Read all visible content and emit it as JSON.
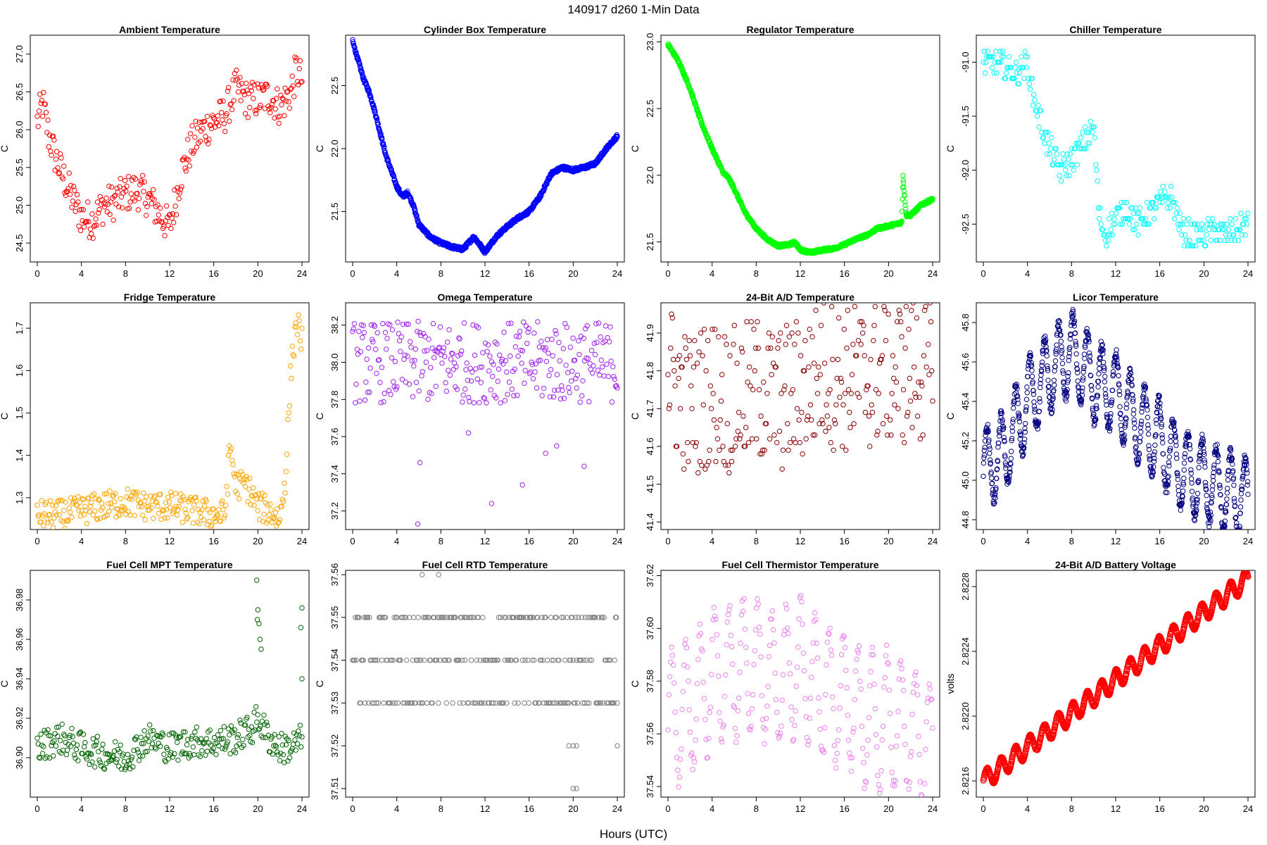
{
  "figure": {
    "title": "140917    d260    1-Min Data",
    "xlabel": "Hours (UTC)"
  },
  "chart_data": [
    {
      "type": "scatter",
      "title": "Ambient Temperature",
      "ylabel": "C",
      "color": "#ff0000",
      "xlim": [
        0,
        24
      ],
      "ylim": [
        24.25,
        27.25
      ],
      "xticks": [
        0,
        4,
        8,
        12,
        16,
        20,
        24
      ],
      "yticks": [
        24.5,
        25.0,
        25.5,
        26.0,
        26.5,
        27.0
      ],
      "ytick_labels": [
        "24.5",
        "25.0",
        "25.5",
        "26.0",
        "26.5",
        "27.0"
      ],
      "density": 1,
      "x": [
        0,
        0.5,
        1,
        1.5,
        2,
        3,
        4,
        5,
        6,
        7,
        8,
        9,
        10,
        11,
        12,
        13,
        14,
        15,
        16,
        17,
        18,
        19,
        20,
        21,
        22,
        23,
        23.5,
        24
      ],
      "y": [
        26.1,
        26.35,
        25.95,
        25.7,
        25.5,
        25.15,
        24.85,
        24.8,
        25.0,
        25.05,
        25.15,
        25.2,
        25.1,
        24.9,
        24.7,
        25.4,
        25.8,
        26.0,
        26.1,
        26.2,
        26.55,
        26.4,
        26.4,
        26.45,
        26.3,
        26.5,
        26.8,
        26.65
      ],
      "spread": 0.25
    },
    {
      "type": "scatter",
      "title": "Cylinder Box Temperature",
      "ylabel": "C",
      "color": "#0000ff",
      "xlim": [
        0,
        24
      ],
      "ylim": [
        21.1,
        22.9
      ],
      "xticks": [
        0,
        4,
        8,
        12,
        16,
        20,
        24
      ],
      "yticks": [
        21.5,
        22.0,
        22.5
      ],
      "ytick_labels": [
        "21.5",
        "22.0",
        "22.5"
      ],
      "density": 3,
      "x": [
        0,
        0.5,
        1,
        1.5,
        2,
        3,
        4,
        4.5,
        5,
        5.5,
        6,
        7,
        8,
        9,
        10,
        10.5,
        11,
        12,
        13,
        14,
        15,
        16,
        17,
        18,
        19,
        20,
        21,
        22,
        23,
        24
      ],
      "y": [
        22.85,
        22.7,
        22.55,
        22.45,
        22.3,
        21.95,
        21.7,
        21.62,
        21.65,
        21.55,
        21.4,
        21.3,
        21.25,
        21.22,
        21.2,
        21.25,
        21.3,
        21.18,
        21.3,
        21.38,
        21.45,
        21.5,
        21.62,
        21.8,
        21.85,
        21.83,
        21.85,
        21.88,
        22.0,
        22.1
      ],
      "spread": 0.015
    },
    {
      "type": "scatter",
      "title": "Regulator Temperature",
      "ylabel": "C",
      "color": "#00ff00",
      "xlim": [
        0,
        24
      ],
      "ylim": [
        21.35,
        23.05
      ],
      "xticks": [
        0,
        4,
        8,
        12,
        16,
        20,
        24
      ],
      "yticks": [
        21.5,
        22.0,
        22.5,
        23.0
      ],
      "ytick_labels": [
        "21.5",
        "22.0",
        "22.5",
        "23.0"
      ],
      "density": 3,
      "x": [
        0,
        1,
        2,
        3,
        4,
        5,
        5.5,
        6,
        7,
        8,
        9,
        10,
        11,
        11.5,
        12,
        13,
        14,
        15,
        16,
        17,
        18,
        19,
        20,
        21,
        21.2,
        21.3,
        21.6,
        22,
        23,
        24
      ],
      "y": [
        22.98,
        22.85,
        22.65,
        22.4,
        22.2,
        22.02,
        21.98,
        21.9,
        21.72,
        21.6,
        21.52,
        21.47,
        21.48,
        21.5,
        21.44,
        21.42,
        21.44,
        21.45,
        21.48,
        21.52,
        21.55,
        21.6,
        21.62,
        21.64,
        21.65,
        22.0,
        21.7,
        21.7,
        21.78,
        21.82
      ],
      "spread": 0.012
    },
    {
      "type": "scatter",
      "title": "Chiller Temperature",
      "ylabel": "C",
      "color": "#00ffff",
      "xlim": [
        0,
        24
      ],
      "ylim": [
        -92.85,
        -90.75
      ],
      "xticks": [
        0,
        4,
        8,
        12,
        16,
        20,
        24
      ],
      "yticks": [
        -92.5,
        -92.0,
        -91.5,
        -91.0
      ],
      "ytick_labels": [
        "-92.5",
        "-92.0",
        "-91.5",
        "-91.0"
      ],
      "density": 1,
      "x": [
        0,
        1,
        2,
        3,
        4,
        4.5,
        5,
        6,
        7,
        8,
        9,
        10,
        10.5,
        11,
        12,
        13,
        14,
        15,
        16,
        17,
        18,
        19,
        20,
        21,
        22,
        23,
        24
      ],
      "y": [
        -91.0,
        -91.0,
        -91.05,
        -91.1,
        -91.0,
        -91.3,
        -91.5,
        -91.8,
        -92.0,
        -91.9,
        -91.75,
        -91.6,
        -92.4,
        -92.6,
        -92.45,
        -92.35,
        -92.5,
        -92.4,
        -92.3,
        -92.25,
        -92.55,
        -92.6,
        -92.6,
        -92.55,
        -92.6,
        -92.55,
        -92.5
      ],
      "spread": 0.12,
      "step": 0.05
    },
    {
      "type": "scatter",
      "title": "Fridge Temperature",
      "ylabel": "C",
      "color": "#ffa500",
      "xlim": [
        0,
        24
      ],
      "ylim": [
        1.225,
        1.76
      ],
      "xticks": [
        0,
        4,
        8,
        12,
        16,
        20,
        24
      ],
      "yticks": [
        1.3,
        1.4,
        1.5,
        1.6,
        1.7
      ],
      "ytick_labels": [
        "1.3",
        "1.4",
        "1.5",
        "1.6",
        "1.7"
      ],
      "density": 1,
      "x": [
        0,
        2,
        4,
        6,
        8,
        10,
        12,
        14,
        16,
        17,
        17.5,
        18,
        19,
        20,
        21,
        22,
        22.5,
        23,
        23.5,
        24
      ],
      "y": [
        1.26,
        1.26,
        1.27,
        1.28,
        1.29,
        1.28,
        1.28,
        1.27,
        1.26,
        1.26,
        1.42,
        1.33,
        1.33,
        1.28,
        1.27,
        1.25,
        1.35,
        1.6,
        1.72,
        1.67
      ],
      "spread": 0.035
    },
    {
      "type": "scatter",
      "title": "Omega Temperature",
      "ylabel": "C",
      "color": "#a020f0",
      "xlim": [
        0,
        24
      ],
      "ylim": [
        37.1,
        38.32
      ],
      "xticks": [
        0,
        4,
        8,
        12,
        16,
        20,
        24
      ],
      "yticks": [
        37.2,
        37.4,
        37.6,
        37.8,
        38.0,
        38.2
      ],
      "ytick_labels": [
        "37.2",
        "37.4",
        "37.6",
        "37.8",
        "38.0",
        "38.2"
      ],
      "density": 1,
      "x": [
        0,
        2,
        4,
        6,
        8,
        10,
        12,
        14,
        16,
        18,
        20,
        22,
        24
      ],
      "y": [
        38.0,
        38.0,
        38.0,
        38.0,
        38.0,
        38.0,
        38.0,
        38.0,
        38.0,
        38.0,
        38.0,
        38.0,
        38.0
      ],
      "spread": 0.22,
      "outliers": [
        [
          6.1,
          37.46
        ],
        [
          5.9,
          37.13
        ],
        [
          10.5,
          37.62
        ],
        [
          12.6,
          37.24
        ],
        [
          15.4,
          37.34
        ],
        [
          17.5,
          37.51
        ],
        [
          18.5,
          37.55
        ],
        [
          21,
          37.44
        ]
      ]
    },
    {
      "type": "scatter",
      "title": "24-Bit A/D Temperature",
      "ylabel": "C",
      "color": "#8b0000",
      "xlim": [
        0,
        24
      ],
      "ylim": [
        41.38,
        41.98
      ],
      "xticks": [
        0,
        4,
        8,
        12,
        16,
        20,
        24
      ],
      "yticks": [
        41.4,
        41.5,
        41.6,
        41.7,
        41.8,
        41.9
      ],
      "ytick_labels": [
        "41.4",
        "41.5",
        "41.6",
        "41.7",
        "41.8",
        "41.9"
      ],
      "density": 1,
      "x": [
        0,
        2,
        4,
        6,
        8,
        10,
        12,
        14,
        16,
        18,
        20,
        22,
        24
      ],
      "y": [
        41.8,
        41.7,
        41.75,
        41.72,
        41.75,
        41.72,
        41.75,
        41.8,
        41.78,
        41.78,
        41.8,
        41.8,
        41.8
      ],
      "spread": 0.2,
      "step": 0.01
    },
    {
      "type": "scatter",
      "title": "Licor Temperature",
      "ylabel": "C",
      "color": "#000080",
      "xlim": [
        0,
        24
      ],
      "ylim": [
        44.75,
        45.9
      ],
      "xticks": [
        0,
        4,
        8,
        12,
        16,
        20,
        24
      ],
      "yticks": [
        44.8,
        45.0,
        45.2,
        45.4,
        45.6,
        45.8
      ],
      "ytick_labels": [
        "44.8",
        "45.0",
        "45.2",
        "45.4",
        "45.6",
        "45.8"
      ],
      "density": 3,
      "x": [
        0,
        2,
        4,
        6,
        8,
        10,
        12,
        14,
        16,
        18,
        20,
        22,
        24
      ],
      "y": [
        45.05,
        45.15,
        45.4,
        45.55,
        45.65,
        45.5,
        45.45,
        45.3,
        45.2,
        45.05,
        45.0,
        44.95,
        44.9
      ],
      "spread": 0.2,
      "oscillate": true
    },
    {
      "type": "scatter",
      "title": "Fuel Cell MPT Temperature",
      "ylabel": "C",
      "color": "#006400",
      "xlim": [
        0,
        24
      ],
      "ylim": [
        36.88,
        36.995
      ],
      "xticks": [
        0,
        4,
        8,
        12,
        16,
        20,
        24
      ],
      "yticks": [
        36.9,
        36.92,
        36.94,
        36.96,
        36.98
      ],
      "ytick_labels": [
        "36.90",
        "36.92",
        "36.94",
        "36.96",
        "36.98"
      ],
      "density": 1,
      "x": [
        0,
        2,
        4,
        6,
        8,
        10,
        12,
        14,
        16,
        18,
        19.5,
        20,
        21,
        22,
        23,
        24
      ],
      "y": [
        36.905,
        36.91,
        36.905,
        36.902,
        36.9,
        36.91,
        36.905,
        36.908,
        36.908,
        36.91,
        36.915,
        36.92,
        36.91,
        36.905,
        36.905,
        36.91
      ],
      "spread": 0.008,
      "outliers": [
        [
          19.9,
          36.99
        ],
        [
          20,
          36.975
        ],
        [
          20.1,
          36.968
        ],
        [
          20.2,
          36.96
        ],
        [
          20.3,
          36.955
        ],
        [
          19.95,
          36.97
        ],
        [
          24,
          36.976
        ],
        [
          23.9,
          36.966
        ],
        [
          24,
          36.94
        ]
      ]
    },
    {
      "type": "scatter",
      "title": "Fuel Cell RTD Temperature",
      "ylabel": "C",
      "color": "#808080",
      "xlim": [
        0,
        24
      ],
      "ylim": [
        37.508,
        37.561
      ],
      "xticks": [
        0,
        4,
        8,
        12,
        16,
        20,
        24
      ],
      "yticks": [
        37.51,
        37.52,
        37.53,
        37.54,
        37.55,
        37.56
      ],
      "ytick_labels": [
        "37.51",
        "37.52",
        "37.53",
        "37.54",
        "37.55",
        "37.56"
      ],
      "density": 1,
      "x": [
        0,
        24
      ],
      "y": [
        37.54,
        37.54
      ],
      "spread": 0.01,
      "step": 0.01,
      "levels": [
        37.53,
        37.54,
        37.55
      ],
      "outliers": [
        [
          6.3,
          37.56
        ],
        [
          7.8,
          37.56
        ],
        [
          19.6,
          37.52
        ],
        [
          20.0,
          37.52
        ],
        [
          20.3,
          37.52
        ],
        [
          24,
          37.52
        ],
        [
          20.0,
          37.51
        ],
        [
          20.3,
          37.51
        ]
      ]
    },
    {
      "type": "scatter",
      "title": "Fuel Cell Thermistor Temperature",
      "ylabel": "C",
      "color": "#ee82ee",
      "xlim": [
        0,
        24
      ],
      "ylim": [
        37.536,
        37.622
      ],
      "xticks": [
        0,
        4,
        8,
        12,
        16,
        20,
        24
      ],
      "yticks": [
        37.54,
        37.56,
        37.58,
        37.6,
        37.62
      ],
      "ytick_labels": [
        "37.54",
        "37.56",
        "37.58",
        "37.60",
        "37.62"
      ],
      "density": 1,
      "x": [
        0,
        2,
        4,
        6,
        8,
        10,
        12,
        14,
        16,
        18,
        20,
        22,
        24
      ],
      "y": [
        37.565,
        37.57,
        37.58,
        37.585,
        37.585,
        37.58,
        37.585,
        37.575,
        37.575,
        37.565,
        37.565,
        37.56,
        37.555
      ],
      "spread": 0.025,
      "oscillate": true
    },
    {
      "type": "line",
      "title": "24-Bit A/D Battery Voltage",
      "ylabel": "volts",
      "color": "#ff0000",
      "xlim": [
        0,
        24
      ],
      "ylim": [
        2.8215,
        2.8229
      ],
      "xticks": [
        0,
        4,
        8,
        12,
        16,
        20,
        24
      ],
      "yticks": [
        2.8216,
        2.822,
        2.8224,
        2.8228
      ],
      "ytick_labels": [
        "2.8216",
        "2.8220",
        "2.8224",
        "2.8228"
      ],
      "density": 4,
      "x": [
        0,
        24
      ],
      "y": [
        2.8216,
        2.82285
      ],
      "spread": 3e-05,
      "oscillate": true,
      "amp": 6e-05
    }
  ]
}
